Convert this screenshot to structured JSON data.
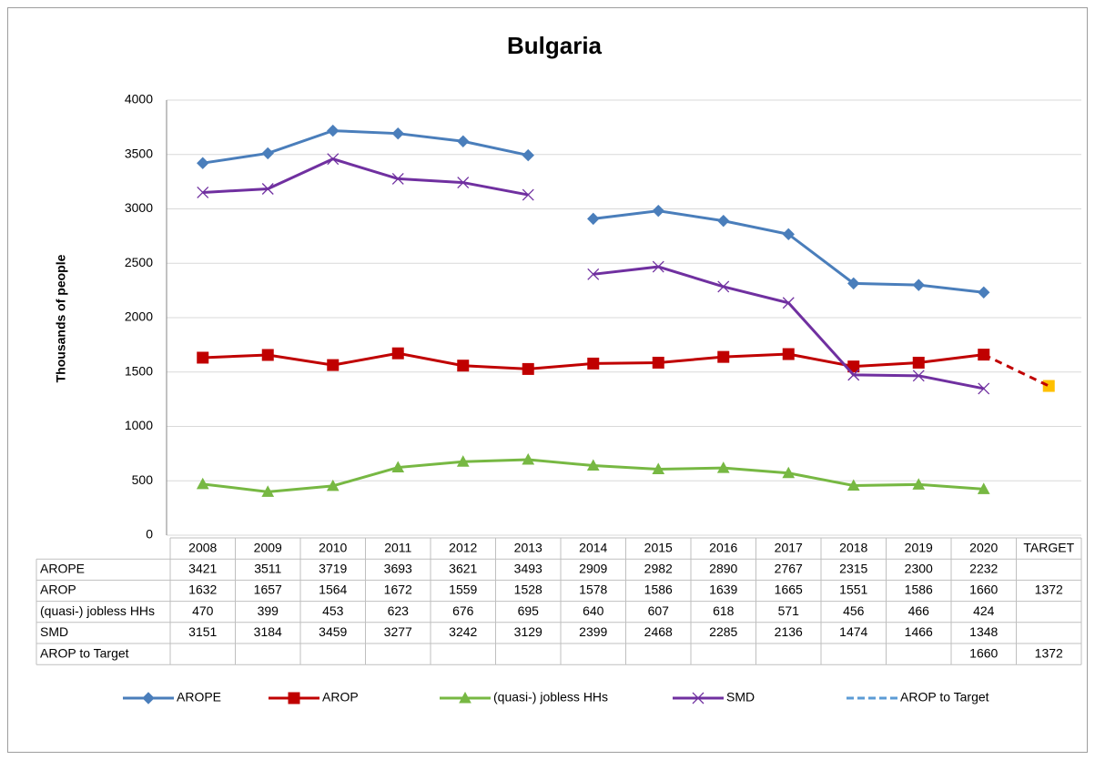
{
  "chart_data": {
    "type": "line",
    "title": "Bulgaria",
    "y_label": "Thousands of people",
    "categories": [
      "2008",
      "2009",
      "2010",
      "2011",
      "2012",
      "2013",
      "2014",
      "2015",
      "2016",
      "2017",
      "2018",
      "2019",
      "2020",
      "TARGET"
    ],
    "ylim": [
      0,
      4000
    ],
    "yticks": [
      0,
      500,
      1000,
      1500,
      2000,
      2500,
      3000,
      3500,
      4000
    ],
    "grid": true,
    "legend": "bottom",
    "data_table": true,
    "series": [
      {
        "name": "AROPE",
        "color": "#4a7ebb",
        "marker": "diamond",
        "break_before": 6,
        "values": [
          3421,
          3511,
          3719,
          3693,
          3621,
          3493,
          2909,
          2982,
          2890,
          2767,
          2315,
          2300,
          2232,
          null
        ]
      },
      {
        "name": "AROP",
        "color": "#c00000",
        "marker": "square",
        "break_before": 13,
        "last_marker_color": "#ffc000",
        "values": [
          1632,
          1657,
          1564,
          1672,
          1559,
          1528,
          1578,
          1586,
          1639,
          1665,
          1551,
          1586,
          1660,
          1372
        ]
      },
      {
        "name": "(quasi-) jobless HHs",
        "color": "#77b843",
        "marker": "triangle",
        "values": [
          470,
          399,
          453,
          623,
          676,
          695,
          640,
          607,
          618,
          571,
          456,
          466,
          424,
          null
        ]
      },
      {
        "name": "SMD",
        "color": "#7030a0",
        "marker": "x",
        "break_before": 6,
        "values": [
          3151,
          3184,
          3459,
          3277,
          3242,
          3129,
          2399,
          2468,
          2285,
          2136,
          1474,
          1466,
          1348,
          null
        ]
      },
      {
        "name": "AROP to Target",
        "color": "#c00000",
        "legend_color": "#5b9bd5",
        "dashed": true,
        "marker": "none",
        "values": [
          null,
          null,
          null,
          null,
          null,
          null,
          null,
          null,
          null,
          null,
          null,
          null,
          1660,
          1372
        ]
      }
    ]
  }
}
